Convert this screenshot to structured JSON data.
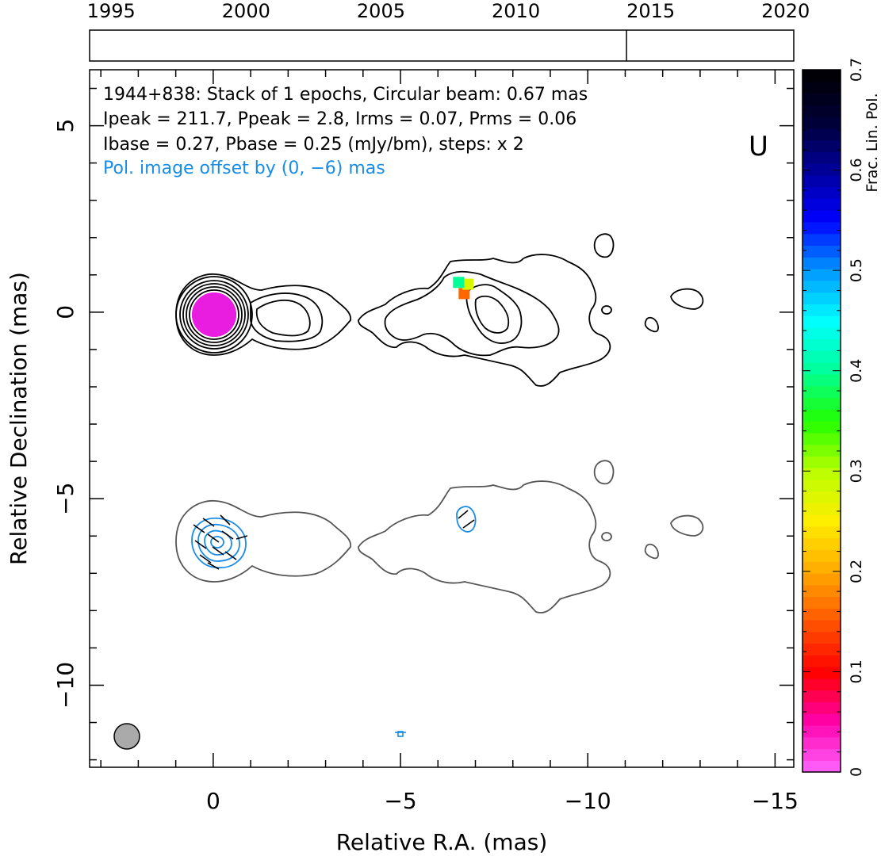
{
  "chart_data": {
    "type": "image",
    "source_label": "U",
    "annotations": [
      "1944+838: Stack of 1 epochs, Circular beam: 0.67 mas",
      "Ipeak = 211.7, Ppeak = 2.8, Irms = 0.07, Prms = 0.06",
      "Ibase = 0.27, Pbase = 0.25 (mJy/bm), steps: x 2"
    ],
    "pol_offset_note": "Pol. image offset by (0, −6) mas",
    "xlabel": "Relative R.A. (mas)",
    "ylabel": "Relative Declination (mas)",
    "xlim": [
      3.3,
      -15.5
    ],
    "ylim": [
      -12.2,
      6.5
    ],
    "x_ticks": [
      0,
      -5,
      -10,
      -15
    ],
    "x_tick_labels": [
      "0",
      "−5",
      "−10",
      "−15"
    ],
    "y_ticks": [
      5,
      0,
      -5,
      -10
    ],
    "y_tick_labels": [
      "5",
      "0",
      "−5",
      "−10"
    ],
    "timeline": {
      "years": [
        1995,
        2000,
        2005,
        2010,
        2015,
        2020
      ],
      "year_labels": [
        "1995",
        "2000",
        "2005",
        "2010",
        "2015",
        "2020"
      ],
      "range": [
        1994.2,
        2020.3
      ],
      "epochs": [
        2014.1
      ]
    },
    "colorbar": {
      "label": "Frac. Lin. Pol.",
      "range": [
        0,
        0.7
      ],
      "ticks": [
        0,
        0.1,
        0.2,
        0.3,
        0.4,
        0.5,
        0.6,
        0.7
      ],
      "tick_labels": [
        "0",
        "0.1",
        "0.2",
        "0.3",
        "0.4",
        "0.5",
        "0.6",
        "0.7"
      ],
      "colormap": [
        "#ff66ff",
        "#ff00aa",
        "#ff0000",
        "#ff5500",
        "#ffaa00",
        "#ffee00",
        "#bbff00",
        "#22ff00",
        "#00ff99",
        "#00ffff",
        "#0099ff",
        "#0000ff",
        "#000099",
        "#000033",
        "#000000"
      ]
    },
    "core_position": [
      0,
      0
    ],
    "core_frac_pol": 0.01,
    "pol_spots": [
      {
        "x": -6.7,
        "y": 0.5,
        "frac_pol": 0.16
      },
      {
        "x": -6.8,
        "y": 0.75,
        "frac_pol": 0.28
      },
      {
        "x": -6.55,
        "y": 0.8,
        "frac_pol": 0.4
      }
    ],
    "beam": {
      "x": 2.3,
      "y": -11.1,
      "fwhm_mas": 0.67,
      "color": "#aaaaaa"
    },
    "colors": {
      "total_intensity": "#000000",
      "stokes_i_lowest": "#555555",
      "pol_contour": "#1a8ce6",
      "evpa": "#000000",
      "annotation": "#000000"
    }
  }
}
